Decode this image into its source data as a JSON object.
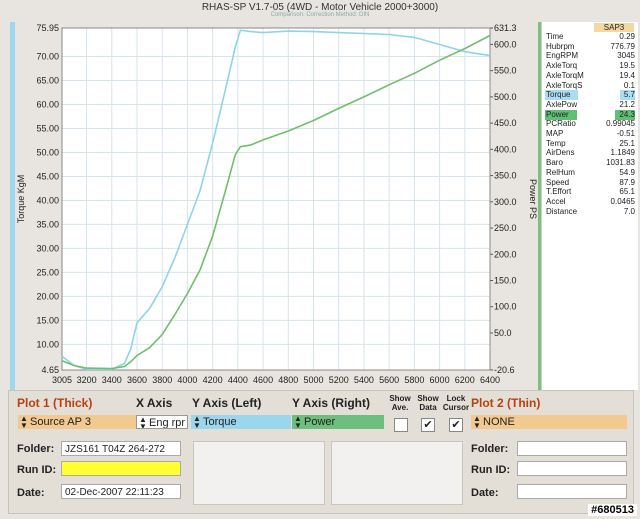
{
  "window": {
    "title": "RHAS-SP V1.7-05   (4WD - Motor Vehicle 2000+3000)",
    "subtitle": "Comparison:      Correction Method: DIN"
  },
  "chart_data": {
    "type": "line",
    "xlabel": "",
    "ylabel_left": "Torque KgM",
    "ylabel_right": "Power PS",
    "xlim": [
      3005,
      6400
    ],
    "ylim_left": [
      4.65,
      75.95
    ],
    "ylim_right": [
      -20.6,
      631.3
    ],
    "x_ticks": [
      "3005",
      "3200",
      "3400",
      "3600",
      "3800",
      "4000",
      "4200",
      "4400",
      "4600",
      "4800",
      "5000",
      "5200",
      "5400",
      "5600",
      "5800",
      "6000",
      "6200",
      "6400"
    ],
    "y_left_ticks": [
      "75.95",
      "70.00",
      "65.00",
      "60.00",
      "55.00",
      "50.00",
      "45.00",
      "40.00",
      "35.00",
      "30.00",
      "25.00",
      "20.00",
      "15.00",
      "10.00",
      "4.65"
    ],
    "y_right_ticks": [
      "631.3",
      "600.0",
      "550.0",
      "500.0",
      "450.0",
      "400.0",
      "350.0",
      "300.0",
      "250.0",
      "200.0",
      "150.0",
      "100.0",
      "50.0",
      "-20.6"
    ],
    "grid": true,
    "series": [
      {
        "name": "Torque",
        "axis": "left",
        "color": "#8fd3ea",
        "points": [
          [
            3005,
            7.5
          ],
          [
            3100,
            5.6
          ],
          [
            3200,
            4.8
          ],
          [
            3300,
            4.8
          ],
          [
            3400,
            4.8
          ],
          [
            3500,
            6.0
          ],
          [
            3550,
            9.0
          ],
          [
            3600,
            14.5
          ],
          [
            3700,
            17.5
          ],
          [
            3800,
            22.0
          ],
          [
            3900,
            28.0
          ],
          [
            4000,
            35.0
          ],
          [
            4100,
            42.0
          ],
          [
            4200,
            52.0
          ],
          [
            4300,
            63.0
          ],
          [
            4380,
            72.0
          ],
          [
            4420,
            75.5
          ],
          [
            4500,
            75.2
          ],
          [
            4600,
            75.0
          ],
          [
            4800,
            75.3
          ],
          [
            5000,
            75.2
          ],
          [
            5200,
            75.0
          ],
          [
            5400,
            74.8
          ],
          [
            5600,
            74.6
          ],
          [
            5800,
            74.0
          ],
          [
            6000,
            72.5
          ],
          [
            6200,
            71.0
          ],
          [
            6400,
            70.2
          ]
        ]
      },
      {
        "name": "Power",
        "axis": "right",
        "color": "#6fbf6a",
        "points": [
          [
            3005,
            -3
          ],
          [
            3100,
            -12
          ],
          [
            3200,
            -17
          ],
          [
            3400,
            -18
          ],
          [
            3500,
            -14
          ],
          [
            3550,
            -5
          ],
          [
            3600,
            7
          ],
          [
            3700,
            22
          ],
          [
            3800,
            47
          ],
          [
            3900,
            85
          ],
          [
            4000,
            125
          ],
          [
            4100,
            170
          ],
          [
            4200,
            235
          ],
          [
            4300,
            320
          ],
          [
            4380,
            390
          ],
          [
            4420,
            405
          ],
          [
            4500,
            408
          ],
          [
            4600,
            418
          ],
          [
            4800,
            435
          ],
          [
            5000,
            455
          ],
          [
            5200,
            478
          ],
          [
            5400,
            500
          ],
          [
            5600,
            523
          ],
          [
            5800,
            545
          ],
          [
            6000,
            570
          ],
          [
            6200,
            592
          ],
          [
            6400,
            617
          ]
        ]
      }
    ]
  },
  "stats": {
    "source": "SAP3",
    "rows": [
      {
        "k": "Time",
        "v": "0.29"
      },
      {
        "k": "Hubrpm",
        "v": "776.79"
      },
      {
        "k": "EngRPM",
        "v": "3045"
      },
      {
        "k": "AxleTorq",
        "v": "19.5"
      },
      {
        "k": "AxleTorqM",
        "v": "19.4"
      },
      {
        "k": "AxleTorqS",
        "v": "0.1"
      },
      {
        "k": "Torque",
        "v": "5.7"
      },
      {
        "k": "AxlePow",
        "v": "21.2"
      },
      {
        "k": "Power",
        "v": "24.3"
      },
      {
        "k": "PCRatio",
        "v": "0.99045"
      },
      {
        "k": "MAP",
        "v": "-0.51"
      },
      {
        "k": "Temp",
        "v": "25.1"
      },
      {
        "k": "AirDens",
        "v": "1.1849"
      },
      {
        "k": "Baro",
        "v": "1031.83"
      },
      {
        "k": "RelHum",
        "v": "54.9"
      },
      {
        "k": "Speed",
        "v": "87.9"
      },
      {
        "k": "T.Effort",
        "v": "65.1"
      },
      {
        "k": "Accel",
        "v": "0.0465"
      },
      {
        "k": "Distance",
        "v": "7.0"
      }
    ]
  },
  "controls": {
    "plot1_label": "Plot 1 (Thick)",
    "xaxis_label": "X Axis",
    "yleft_label": "Y Axis (Left)",
    "yright_label": "Y Axis (Right)",
    "show_ave_label": "Show Ave.",
    "show_data_label": "Show Data",
    "lock_cursor_label": "Lock Cursor",
    "plot2_label": "Plot 2 (Thin)",
    "plot1_value": "Source AP 3",
    "xaxis_value": "Eng rpr",
    "yleft_value": "Torque",
    "yright_value": "Power",
    "plot2_value": "NONE",
    "folder_label": "Folder:",
    "runid_label": "Run ID:",
    "date_label": "Date:",
    "folder_value": "JZS161 T04Z 264-272",
    "runid_value": "",
    "date_value": "02-Dec-2007  22:11:23",
    "folder2_label": "Folder:",
    "runid2_label": "Run ID:",
    "date2_label": "Date:",
    "check_mark": "✔"
  },
  "watermark": "#680513"
}
